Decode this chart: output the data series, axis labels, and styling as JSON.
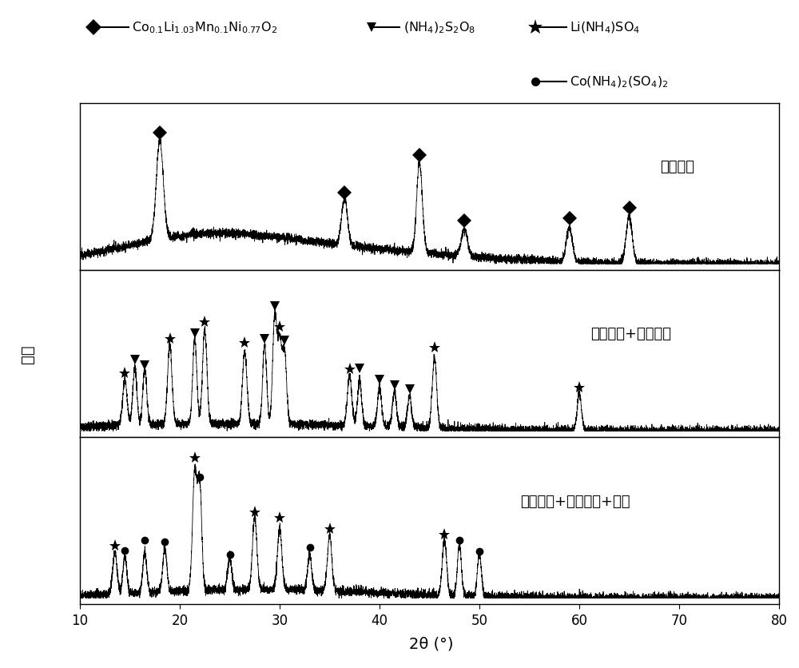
{
  "xlim": [
    10,
    80
  ],
  "xlabel": "2θ (°)",
  "ylabel": "强度",
  "panel_labels": [
    "正极材料",
    "正极材料+过硫酸鐵",
    "正极材料+过硫酸鐵+蔗糖"
  ],
  "background_color": "#ffffff",
  "line_color": "#000000",
  "panel1_diamond_peaks": [
    18.0,
    36.5,
    44.0,
    48.5,
    59.0,
    65.0
  ],
  "panel1_diamond_heights": [
    0.82,
    0.38,
    0.75,
    0.22,
    0.28,
    0.38
  ],
  "panel2_star_peaks": [
    14.5,
    19.0,
    22.5,
    26.5,
    30.0,
    37.0,
    45.5,
    60.0
  ],
  "panel2_star_heights": [
    0.32,
    0.55,
    0.65,
    0.5,
    0.58,
    0.35,
    0.48,
    0.25
  ],
  "panel2_triangle_peaks": [
    15.5,
    16.5,
    21.5,
    28.5,
    29.5,
    30.5,
    38.0,
    40.0,
    41.5,
    43.0
  ],
  "panel2_triangle_heights": [
    0.4,
    0.38,
    0.6,
    0.55,
    0.72,
    0.48,
    0.32,
    0.28,
    0.25,
    0.22
  ],
  "panel3_star_peaks": [
    13.5,
    21.5,
    27.5,
    30.0,
    35.0,
    46.5
  ],
  "panel3_star_heights": [
    0.28,
    0.82,
    0.5,
    0.42,
    0.38,
    0.38
  ],
  "panel3_circle_peaks": [
    14.5,
    16.5,
    18.5,
    22.0,
    25.0,
    33.0,
    48.0,
    50.0
  ],
  "panel3_circle_heights": [
    0.25,
    0.28,
    0.3,
    0.72,
    0.22,
    0.25,
    0.35,
    0.3
  ],
  "figsize": [
    10.0,
    8.37
  ],
  "dpi": 100
}
